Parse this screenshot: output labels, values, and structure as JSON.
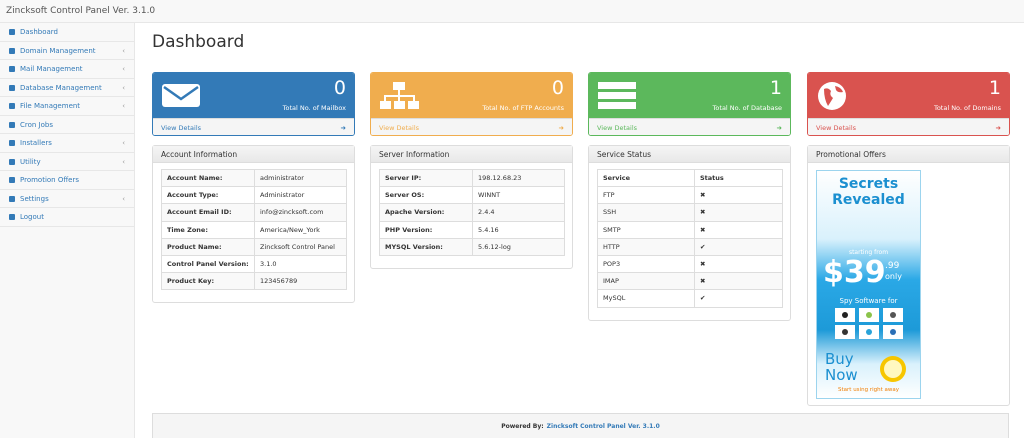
{
  "header": {
    "title": "Zincksoft Control Panel Ver. 3.1.0"
  },
  "sidebar": {
    "items": [
      "Dashboard",
      "Domain Management",
      "Mail Management",
      "Database Management",
      "File Management",
      "Cron Jobs",
      "Installers",
      "Utility",
      "Promotion Offers",
      "Settings",
      "Logout"
    ]
  },
  "page_title": "Dashboard",
  "cards": [
    {
      "value": "0",
      "label": "Total No. of Mailbox",
      "link": "View Details",
      "color": "#337ab7"
    },
    {
      "value": "0",
      "label": "Total No. of FTP Accounts",
      "link": "View Details",
      "color": "#f0ad4e"
    },
    {
      "value": "1",
      "label": "Total No. of Database",
      "link": "View Details",
      "color": "#5cb85c"
    },
    {
      "value": "1",
      "label": "Total No. of Domains",
      "link": "View Details",
      "color": "#d9534f"
    }
  ],
  "panels": {
    "account": {
      "title": "Account Information",
      "rows": [
        [
          "Account Name:",
          "administrator"
        ],
        [
          "Account Type:",
          "Administrator"
        ],
        [
          "Account Email ID:",
          "info@zincksoft.com"
        ],
        [
          "Time Zone:",
          "America/New_York"
        ],
        [
          "Product Name:",
          "Zincksoft Control Panel"
        ],
        [
          "Control Panel Version:",
          "3.1.0"
        ],
        [
          "Product Key:",
          "123456789"
        ]
      ]
    },
    "server": {
      "title": "Server Information",
      "rows": [
        [
          "Server IP:",
          "198.12.68.23"
        ],
        [
          "Server OS:",
          "WINNT"
        ],
        [
          "Apache Version:",
          "2.4.4"
        ],
        [
          "PHP Version:",
          "5.4.16"
        ],
        [
          "MYSQL Version:",
          "5.6.12-log"
        ]
      ]
    },
    "service": {
      "title": "Service Status",
      "columns": [
        "Service",
        "Status"
      ],
      "rows": [
        [
          "FTP",
          "✖"
        ],
        [
          "SSH",
          "✖"
        ],
        [
          "SMTP",
          "✖"
        ],
        [
          "HTTP",
          "✔"
        ],
        [
          "POP3",
          "✖"
        ],
        [
          "IMAP",
          "✖"
        ],
        [
          "MySQL",
          "✔"
        ]
      ]
    },
    "promo": {
      "title": "Promotional Offers",
      "ad": {
        "headline": "Secrets Revealed",
        "starting": "starting from",
        "price": "$39",
        "cents": ".99",
        "only": "only",
        "spy": "Spy Software for",
        "buy": "Buy Now",
        "start": "Start using right away"
      }
    }
  },
  "footer": {
    "label": "Powered By:",
    "link": "Zincksoft Control Panel Ver. 3.1.0"
  }
}
